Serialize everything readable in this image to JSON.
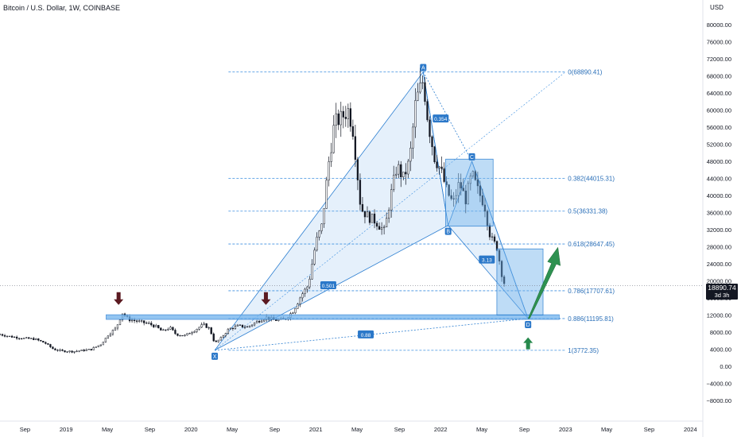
{
  "header": {
    "title": "Bitcoin / U.S. Dollar, 1W, COINBASE",
    "currency": "USD"
  },
  "current_price": {
    "value": "18890.74",
    "countdown": "3d 3h"
  },
  "chart_data": {
    "type": "candlestick",
    "price_axis": {
      "ticks": [
        "80000.00",
        "76000.00",
        "72000.00",
        "68000.00",
        "64000.00",
        "60000.00",
        "56000.00",
        "52000.00",
        "48000.00",
        "44000.00",
        "40000.00",
        "36000.00",
        "32000.00",
        "28000.00",
        "24000.00",
        "20000.00",
        "16000.00",
        "12000.00",
        "8000.00",
        "4000.00",
        "0.00",
        "−4000.00",
        "−8000.00"
      ],
      "range": [
        -10000,
        82000
      ]
    },
    "time_axis": {
      "labels": [
        {
          "t": 2018.67,
          "label": "Sep"
        },
        {
          "t": 2019.0,
          "label": "2019"
        },
        {
          "t": 2019.33,
          "label": "May"
        },
        {
          "t": 2019.67,
          "label": "Sep"
        },
        {
          "t": 2020.0,
          "label": "2020"
        },
        {
          "t": 2020.33,
          "label": "May"
        },
        {
          "t": 2020.67,
          "label": "Sep"
        },
        {
          "t": 2021.0,
          "label": "2021"
        },
        {
          "t": 2021.33,
          "label": "May"
        },
        {
          "t": 2021.67,
          "label": "Sep"
        },
        {
          "t": 2022.0,
          "label": "2022"
        },
        {
          "t": 2022.33,
          "label": "May"
        },
        {
          "t": 2022.67,
          "label": "Sep"
        },
        {
          "t": 2023.0,
          "label": "2023"
        },
        {
          "t": 2023.33,
          "label": "May"
        },
        {
          "t": 2023.67,
          "label": "Sep"
        },
        {
          "t": 2024.0,
          "label": "2024"
        }
      ],
      "range": [
        2018.47,
        2024.1
      ]
    },
    "price_path": [
      [
        2018.47,
        7500
      ],
      [
        2018.55,
        7000
      ],
      [
        2018.65,
        6600
      ],
      [
        2018.75,
        6400
      ],
      [
        2018.83,
        5500
      ],
      [
        2018.9,
        4000
      ],
      [
        2018.97,
        3600
      ],
      [
        2019.05,
        3500
      ],
      [
        2019.12,
        3700
      ],
      [
        2019.2,
        4000
      ],
      [
        2019.28,
        5200
      ],
      [
        2019.34,
        7500
      ],
      [
        2019.4,
        9000
      ],
      [
        2019.45,
        12500
      ],
      [
        2019.5,
        11000
      ],
      [
        2019.58,
        10500
      ],
      [
        2019.66,
        10000
      ],
      [
        2019.72,
        9300
      ],
      [
        2019.77,
        8200
      ],
      [
        2019.83,
        9100
      ],
      [
        2019.88,
        7500
      ],
      [
        2019.95,
        7200
      ],
      [
        2020.03,
        8500
      ],
      [
        2020.1,
        9800
      ],
      [
        2020.15,
        8800
      ],
      [
        2020.19,
        5400
      ],
      [
        2020.24,
        6600
      ],
      [
        2020.3,
        8700
      ],
      [
        2020.38,
        9500
      ],
      [
        2020.45,
        9200
      ],
      [
        2020.53,
        10500
      ],
      [
        2020.6,
        11500
      ],
      [
        2020.67,
        10800
      ],
      [
        2020.75,
        11000
      ],
      [
        2020.82,
        13000
      ],
      [
        2020.88,
        16500
      ],
      [
        2020.94,
        19000
      ],
      [
        2021.0,
        29000
      ],
      [
        2021.05,
        33000
      ],
      [
        2021.1,
        47000
      ],
      [
        2021.15,
        57000
      ],
      [
        2021.2,
        58000
      ],
      [
        2021.26,
        60000
      ],
      [
        2021.3,
        55000
      ],
      [
        2021.36,
        37000
      ],
      [
        2021.42,
        35000
      ],
      [
        2021.48,
        34000
      ],
      [
        2021.55,
        31500
      ],
      [
        2021.6,
        40000
      ],
      [
        2021.65,
        47000
      ],
      [
        2021.7,
        44000
      ],
      [
        2021.75,
        48000
      ],
      [
        2021.8,
        62000
      ],
      [
        2021.86,
        67000
      ],
      [
        2021.9,
        57000
      ],
      [
        2021.95,
        49000
      ],
      [
        2022.0,
        46000
      ],
      [
        2022.05,
        41000
      ],
      [
        2022.1,
        38000
      ],
      [
        2022.15,
        43000
      ],
      [
        2022.2,
        39000
      ],
      [
        2022.25,
        45000
      ],
      [
        2022.3,
        41000
      ],
      [
        2022.35,
        38000
      ],
      [
        2022.4,
        30000
      ],
      [
        2022.45,
        28000
      ],
      [
        2022.5,
        20000
      ],
      [
        2022.52,
        19000
      ]
    ],
    "fib_levels": [
      {
        "ratio": 1,
        "price": 3772.35,
        "label": "1(3772.35)"
      },
      {
        "ratio": 0.886,
        "price": 11195.81,
        "label": "0.886(11195.81)"
      },
      {
        "ratio": 0.786,
        "price": 17707.61,
        "label": "0.786(17707.61)"
      },
      {
        "ratio": 0.618,
        "price": 28647.45,
        "label": "0.618(28647.45)"
      },
      {
        "ratio": 0.5,
        "price": 36331.38,
        "label": "0.5(36331.38)"
      },
      {
        "ratio": 0.382,
        "price": 44015.31,
        "label": "0.382(44015.31)"
      },
      {
        "ratio": 0,
        "price": 68890.41,
        "label": "0(68890.41)"
      }
    ],
    "harmonic_points": [
      {
        "name": "X",
        "t": 2020.19,
        "price": 3772
      },
      {
        "name": "A",
        "t": 2021.86,
        "price": 68890
      },
      {
        "name": "B",
        "t": 2022.06,
        "price": 33000
      },
      {
        "name": "C",
        "t": 2022.25,
        "price": 48000
      },
      {
        "name": "D",
        "t": 2022.7,
        "price": 11195
      }
    ],
    "harmonic_ratios": [
      {
        "label": "0.354",
        "t": 2022.0,
        "price": 58000
      },
      {
        "label": "0.501",
        "t": 2021.1,
        "price": 19000
      },
      {
        "label": "3.13",
        "t": 2022.37,
        "price": 25000
      },
      {
        "label": "0.88",
        "t": 2021.4,
        "price": 7500
      }
    ],
    "support_zone": {
      "price_low": 11000,
      "price_high": 12100
    },
    "arrows": [
      {
        "kind": "down",
        "color": "#5b1a21",
        "t": 2019.42,
        "price": 15500
      },
      {
        "kind": "down",
        "color": "#5b1a21",
        "t": 2020.6,
        "price": 15500
      },
      {
        "kind": "up",
        "color": "#26894c",
        "t": 2022.7,
        "price": 5500
      }
    ],
    "grid": false
  },
  "colors": {
    "up_candle": "#131722",
    "down_candle": "#131722",
    "pattern_fill": "#cfe3f7",
    "pattern_line": "#2d7fd1",
    "fib_line": "#3d8fe0",
    "zone_fill": "#6fb2ec",
    "target_arrow": "#2e9150"
  }
}
